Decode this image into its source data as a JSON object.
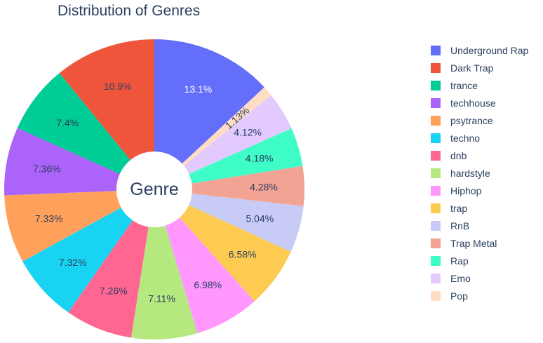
{
  "chart_data": {
    "type": "pie",
    "title": "Distribution of Genres",
    "center_label": "Genre",
    "hole": true,
    "legend_placement": "right",
    "label_color_inside": "#2a3f5f",
    "label_color_outside": "#2a3f5f",
    "slices": [
      {
        "label": "Underground Rap",
        "value": 13.1,
        "text": "13.1%",
        "color": "#636efa",
        "text_color": "#ffffff"
      },
      {
        "label": "Pop",
        "value": 1.13,
        "text": "1.13%",
        "color": "#ffddc4",
        "text_color": "#2a3f5f"
      },
      {
        "label": "Emo",
        "value": 4.12,
        "text": "4.12%",
        "color": "#e2caff",
        "text_color": "#2a3f5f"
      },
      {
        "label": "Rap",
        "value": 4.18,
        "text": "4.18%",
        "color": "#3ffdc6",
        "text_color": "#2a3f5f"
      },
      {
        "label": "Trap Metal",
        "value": 4.28,
        "text": "4.28%",
        "color": "#f3a394",
        "text_color": "#2a3f5f"
      },
      {
        "label": "RnB",
        "value": 5.04,
        "text": "5.04%",
        "color": "#c8cbf6",
        "text_color": "#2a3f5f"
      },
      {
        "label": "trap",
        "value": 6.58,
        "text": "6.58%",
        "color": "#fecb52",
        "text_color": "#2a3f5f"
      },
      {
        "label": "Hiphop",
        "value": 6.98,
        "text": "6.98%",
        "color": "#ff97ff",
        "text_color": "#2a3f5f"
      },
      {
        "label": "hardstyle",
        "value": 7.11,
        "text": "7.11%",
        "color": "#b6e880",
        "text_color": "#2a3f5f"
      },
      {
        "label": "dnb",
        "value": 7.26,
        "text": "7.26%",
        "color": "#ff6692",
        "text_color": "#2a3f5f"
      },
      {
        "label": "techno",
        "value": 7.32,
        "text": "7.32%",
        "color": "#19d3f3",
        "text_color": "#2a3f5f"
      },
      {
        "label": "psytrance",
        "value": 7.33,
        "text": "7.33%",
        "color": "#ffa15a",
        "text_color": "#2a3f5f"
      },
      {
        "label": "techhouse",
        "value": 7.36,
        "text": "7.36%",
        "color": "#ab63fa",
        "text_color": "#2a3f5f"
      },
      {
        "label": "trance",
        "value": 7.4,
        "text": "7.4%",
        "color": "#00cc96",
        "text_color": "#2a3f5f"
      },
      {
        "label": "Dark Trap",
        "value": 10.9,
        "text": "10.9%",
        "color": "#ef553b",
        "text_color": "#2a3f5f"
      }
    ],
    "legend": [
      {
        "label": "Underground Rap",
        "color": "#636efa"
      },
      {
        "label": "Dark Trap",
        "color": "#ef553b"
      },
      {
        "label": "trance",
        "color": "#00cc96"
      },
      {
        "label": "techhouse",
        "color": "#ab63fa"
      },
      {
        "label": "psytrance",
        "color": "#ffa15a"
      },
      {
        "label": "techno",
        "color": "#19d3f3"
      },
      {
        "label": "dnb",
        "color": "#ff6692"
      },
      {
        "label": "hardstyle",
        "color": "#b6e880"
      },
      {
        "label": "Hiphop",
        "color": "#ff97ff"
      },
      {
        "label": "trap",
        "color": "#fecb52"
      },
      {
        "label": "RnB",
        "color": "#c8cbf6"
      },
      {
        "label": "Trap Metal",
        "color": "#f3a394"
      },
      {
        "label": "Rap",
        "color": "#3ffdc6"
      },
      {
        "label": "Emo",
        "color": "#e2caff"
      },
      {
        "label": "Pop",
        "color": "#ffddc4"
      }
    ]
  }
}
